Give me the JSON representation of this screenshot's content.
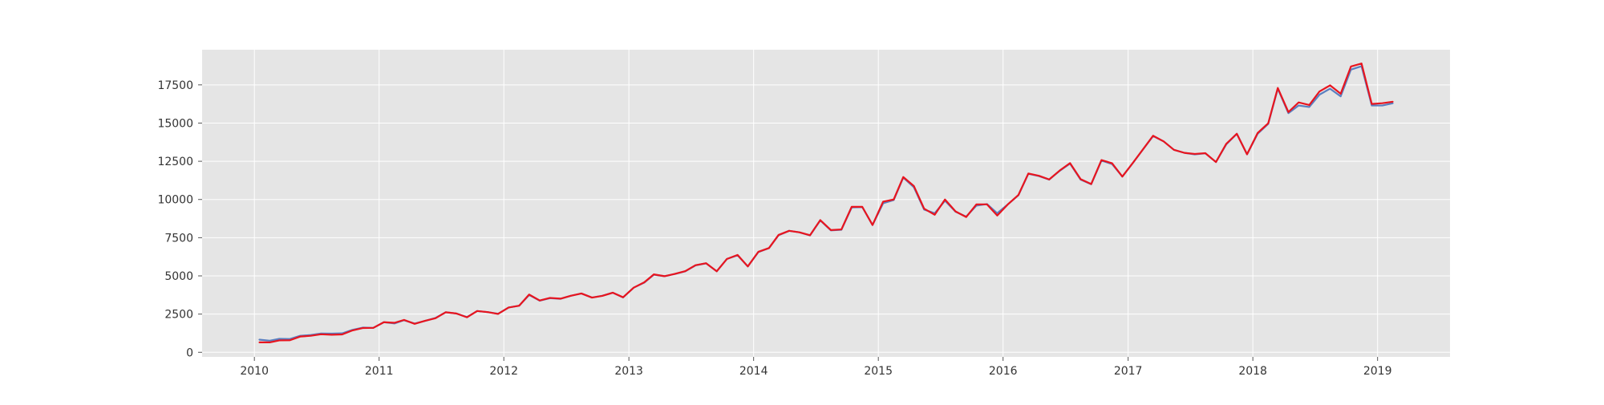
{
  "chart_data": {
    "type": "line",
    "title": "",
    "xlabel": "",
    "ylabel": "",
    "grid": true,
    "background": "#e5e5e5",
    "grid_color": "#ffffff",
    "xlim": [
      "2009-08-01",
      "2019-08-01"
    ],
    "ylim": [
      -300,
      19800
    ],
    "x_ticks": [
      {
        "date": "2010-01-01",
        "label": "2010"
      },
      {
        "date": "2011-01-01",
        "label": "2011"
      },
      {
        "date": "2012-01-01",
        "label": "2012"
      },
      {
        "date": "2013-01-01",
        "label": "2013"
      },
      {
        "date": "2014-01-01",
        "label": "2014"
      },
      {
        "date": "2015-01-01",
        "label": "2015"
      },
      {
        "date": "2016-01-01",
        "label": "2016"
      },
      {
        "date": "2017-01-01",
        "label": "2017"
      },
      {
        "date": "2018-01-01",
        "label": "2018"
      },
      {
        "date": "2019-01-01",
        "label": "2019"
      }
    ],
    "y_ticks": [
      0,
      2500,
      5000,
      7500,
      10000,
      12500,
      15000,
      17500
    ],
    "x": [
      "2010-01",
      "2010-02",
      "2010-03",
      "2010-04",
      "2010-05",
      "2010-06",
      "2010-07",
      "2010-08",
      "2010-09",
      "2010-10",
      "2010-11",
      "2010-12",
      "2011-01",
      "2011-02",
      "2011-03",
      "2011-04",
      "2011-05",
      "2011-06",
      "2011-07",
      "2011-08",
      "2011-09",
      "2011-10",
      "2011-11",
      "2011-12",
      "2012-01",
      "2012-02",
      "2012-03",
      "2012-04",
      "2012-05",
      "2012-06",
      "2012-07",
      "2012-08",
      "2012-09",
      "2012-10",
      "2012-11",
      "2012-12",
      "2013-01",
      "2013-02",
      "2013-03",
      "2013-04",
      "2013-05",
      "2013-06",
      "2013-07",
      "2013-08",
      "2013-09",
      "2013-10",
      "2013-11",
      "2013-12",
      "2014-01",
      "2014-02",
      "2014-03",
      "2014-04",
      "2014-05",
      "2014-06",
      "2014-07",
      "2014-08",
      "2014-09",
      "2014-10",
      "2014-11",
      "2014-12",
      "2015-01",
      "2015-02",
      "2015-03",
      "2015-04",
      "2015-05",
      "2015-06",
      "2015-07",
      "2015-08",
      "2015-09",
      "2015-10",
      "2015-11",
      "2015-12",
      "2016-01",
      "2016-02",
      "2016-03",
      "2016-04",
      "2016-05",
      "2016-06",
      "2016-07",
      "2016-08",
      "2016-09",
      "2016-10",
      "2016-11",
      "2016-12",
      "2017-01",
      "2017-02",
      "2017-03",
      "2017-04",
      "2017-05",
      "2017-06",
      "2017-07",
      "2017-08",
      "2017-09",
      "2017-10",
      "2017-11",
      "2017-12",
      "2018-01",
      "2018-02",
      "2018-03",
      "2018-04",
      "2018-05",
      "2018-06",
      "2018-07",
      "2018-08",
      "2018-09",
      "2018-10",
      "2018-11",
      "2018-12",
      "2019-01",
      "2019-02"
    ],
    "series": [
      {
        "color": "#5a7fc0",
        "values": [
          830,
          760,
          880,
          870,
          1080,
          1130,
          1230,
          1220,
          1240,
          1470,
          1620,
          1600,
          1970,
          1890,
          2100,
          1880,
          2050,
          2250,
          2620,
          2540,
          2300,
          2700,
          2630,
          2520,
          2930,
          3050,
          3750,
          3380,
          3540,
          3500,
          3700,
          3850,
          3580,
          3700,
          3900,
          3590,
          4230,
          4560,
          5080,
          4980,
          5120,
          5300,
          5690,
          5820,
          5300,
          6110,
          6350,
          5620,
          6560,
          6820,
          7660,
          7950,
          7850,
          7650,
          8630,
          7980,
          8020,
          9480,
          9500,
          8330,
          9750,
          9960,
          11430,
          10800,
          9340,
          9100,
          9920,
          9200,
          8880,
          9600,
          9700,
          9100,
          9680,
          10280,
          11680,
          11530,
          11300,
          11880,
          12350,
          11300,
          11000,
          12550,
          12320,
          11500,
          12390,
          13320,
          14150,
          13800,
          13250,
          13050,
          12950,
          13020,
          12450,
          13600,
          14300,
          12950,
          14300,
          14950,
          17250,
          15650,
          16150,
          16050,
          16860,
          17250,
          16750,
          18500,
          18720,
          16150,
          16150,
          16300
        ]
      },
      {
        "color": "#e8151f",
        "values": [
          650,
          650,
          780,
          790,
          1030,
          1080,
          1180,
          1150,
          1170,
          1430,
          1590,
          1600,
          1970,
          1930,
          2120,
          1860,
          2060,
          2230,
          2620,
          2540,
          2290,
          2700,
          2630,
          2510,
          2930,
          3050,
          3780,
          3390,
          3560,
          3510,
          3700,
          3850,
          3580,
          3690,
          3900,
          3600,
          4230,
          4580,
          5100,
          4980,
          5130,
          5310,
          5700,
          5830,
          5300,
          6110,
          6370,
          5620,
          6580,
          6820,
          7680,
          7950,
          7850,
          7660,
          8650,
          8000,
          8040,
          9520,
          9520,
          8330,
          9860,
          10000,
          11470,
          10880,
          9400,
          9000,
          10000,
          9220,
          8850,
          9680,
          9680,
          8950,
          9680,
          10300,
          11700,
          11550,
          11310,
          11900,
          12380,
          11330,
          11010,
          12580,
          12370,
          11500,
          12400,
          13330,
          14170,
          13800,
          13250,
          13050,
          12980,
          13030,
          12450,
          13640,
          14300,
          12960,
          14350,
          14990,
          17300,
          15720,
          16350,
          16180,
          17070,
          17470,
          16920,
          18700,
          18900,
          16250,
          16300,
          16400
        ]
      }
    ]
  }
}
